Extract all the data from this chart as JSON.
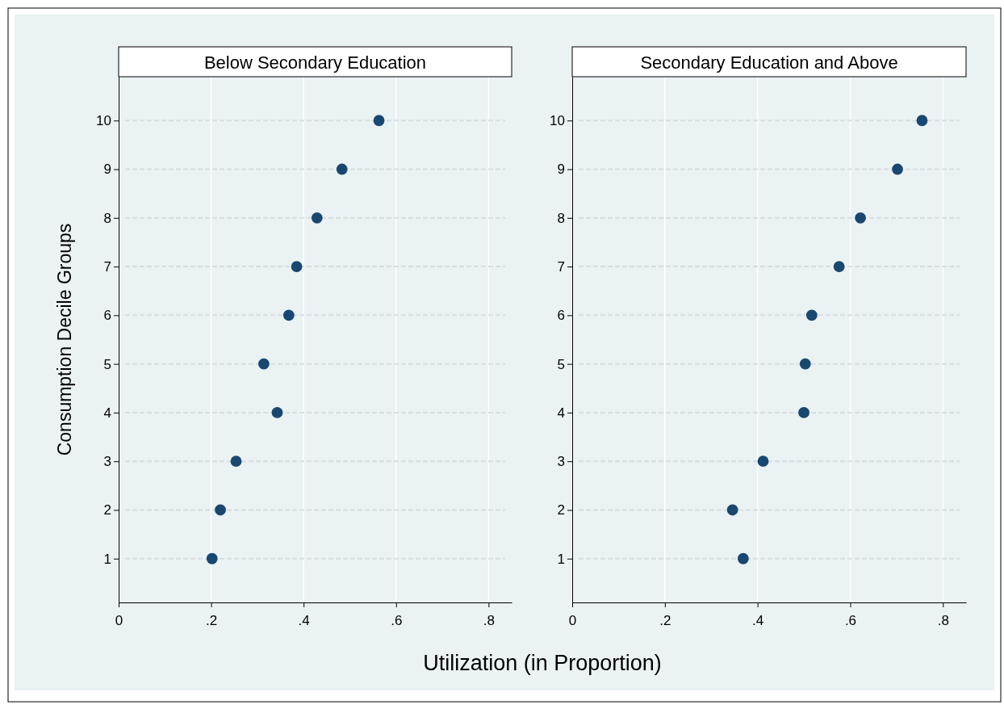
{
  "chart_data": [
    {
      "type": "scatter",
      "title": "Below Secondary Education",
      "xlabel": "Utilization (in Proportion)",
      "ylabel": "Consumption Decile Groups",
      "marker": "circle",
      "grid": true,
      "series": [
        {
          "color": "#1a476f",
          "x": [
            0.563,
            0.483,
            0.429,
            0.385,
            0.368,
            0.314,
            0.343,
            0.254,
            0.22,
            0.202
          ],
          "values": [
            10,
            9,
            8,
            7,
            6,
            5,
            4,
            3,
            2,
            1
          ]
        }
      ],
      "xlim": [
        0,
        0.85
      ],
      "xticks": [
        0,
        {
          "value": 0.2,
          "label": ".2"
        },
        {
          "value": 0.4,
          "label": ".4"
        },
        {
          "value": 0.6,
          "label": ".6"
        },
        {
          "value": 0.8,
          "label": ".8"
        }
      ],
      "ylim": [
        0.1,
        10.9
      ],
      "yticks": [
        1,
        2,
        3,
        4,
        5,
        6,
        7,
        8,
        9,
        10
      ]
    },
    {
      "type": "scatter",
      "title": "Secondary Education and Above",
      "marker": "circle",
      "grid": true,
      "series": [
        {
          "color": "#1a476f",
          "x": [
            0.755,
            0.702,
            0.622,
            0.576,
            0.517,
            0.503,
            0.5,
            0.412,
            0.346,
            0.369
          ],
          "values": [
            10,
            9,
            8,
            7,
            6,
            5,
            4,
            3,
            2,
            1
          ]
        }
      ],
      "xlim": [
        0,
        0.85
      ],
      "xticks": [
        0,
        {
          "value": 0.2,
          "label": ".2"
        },
        {
          "value": 0.4,
          "label": ".4"
        },
        {
          "value": 0.6,
          "label": ".6"
        },
        {
          "value": 0.8,
          "label": ".8"
        }
      ],
      "ylim": [
        0.1,
        10.9
      ],
      "yticks": [
        1,
        2,
        3,
        4,
        5,
        6,
        7,
        8,
        9,
        10
      ]
    }
  ]
}
